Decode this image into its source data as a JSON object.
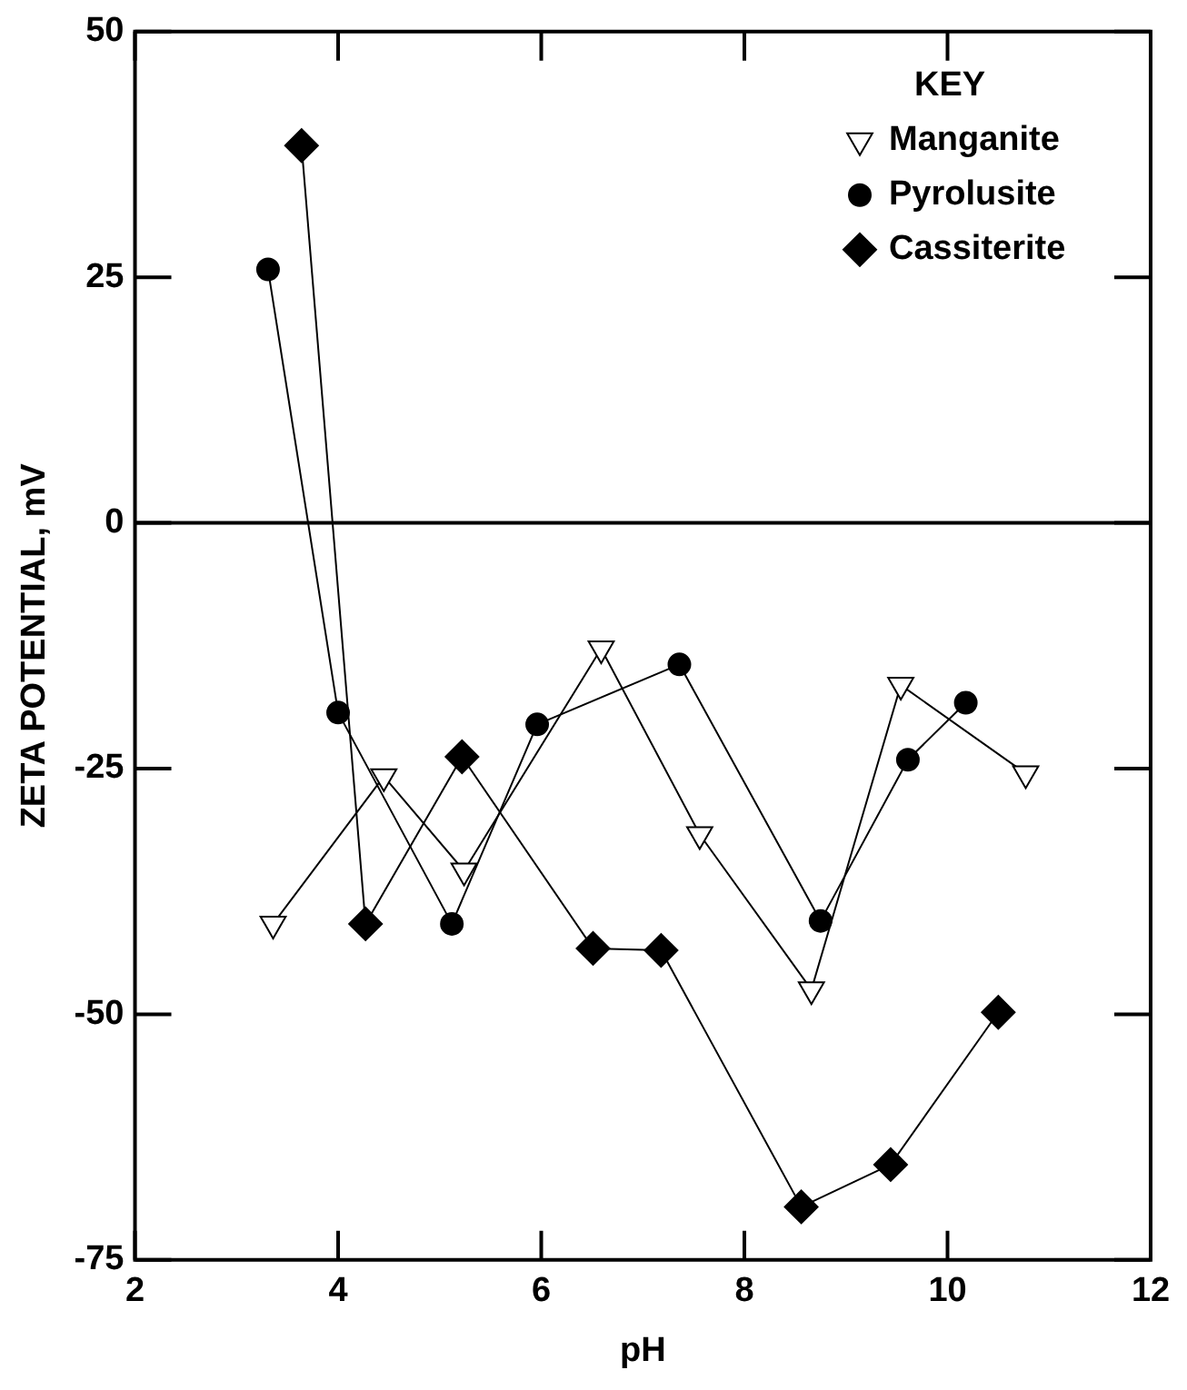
{
  "chart_data": {
    "type": "line",
    "xlabel": "pH",
    "ylabel": "ZETA POTENTIAL, mV",
    "legend_title": "KEY",
    "legend": "top right",
    "grid": false,
    "series": [
      {
        "name": "Manganite",
        "color": "#000000",
        "marker": "triangle",
        "x": [
          3.36,
          4.45,
          5.24,
          6.59,
          7.56,
          8.66,
          9.54,
          10.77
        ],
        "values": [
          -40.8,
          -25.8,
          -35.4,
          -12.8,
          -31.7,
          -47.5,
          -16.5,
          -25.5
        ]
      },
      {
        "name": "Pyrolusite",
        "color": "#000000",
        "marker": "circle",
        "x": [
          3.31,
          4.0,
          5.12,
          5.96,
          7.36,
          8.75,
          9.61,
          10.18
        ],
        "values": [
          25.8,
          -19.3,
          -40.8,
          -20.5,
          -14.4,
          -40.5,
          -24.1,
          -18.3
        ]
      },
      {
        "name": "Cassiterite",
        "color": "#000000",
        "marker": "diamond",
        "x": [
          3.64,
          4.27,
          5.22,
          6.51,
          7.18,
          8.56,
          9.44,
          10.5
        ],
        "values": [
          38.4,
          -40.8,
          -23.8,
          -43.3,
          -43.5,
          -69.6,
          -65.3,
          -49.8
        ]
      }
    ],
    "xlim": [
      2,
      12
    ],
    "xticks": [
      2,
      4,
      6,
      8,
      10,
      12
    ],
    "ylim": [
      -75,
      50
    ],
    "yticks": [
      -75,
      -50,
      -25,
      0,
      25,
      50
    ],
    "ref_lines": [
      {
        "axis": "y",
        "value": 0,
        "color": "#000000"
      }
    ]
  }
}
